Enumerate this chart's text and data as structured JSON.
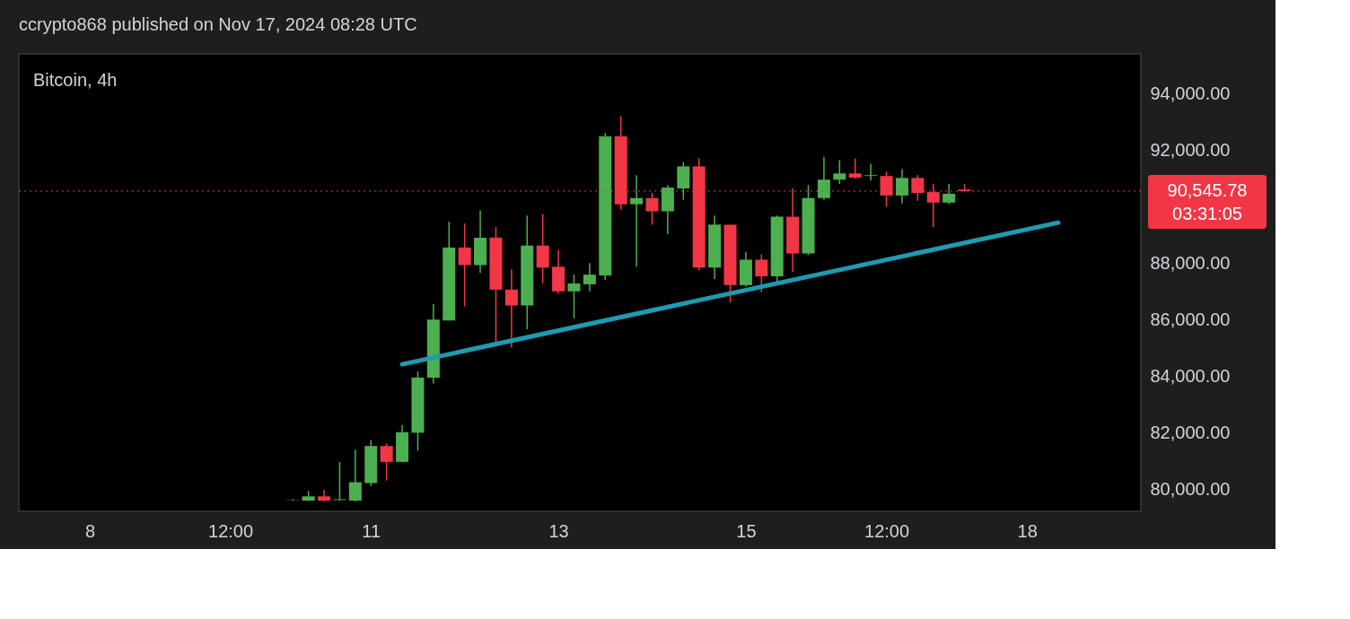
{
  "chart_data": {
    "type": "candlestick",
    "title": "ccrypto868 published on Nov 17, 2024 08:28 UTC",
    "subtitle": "Bitcoin, 4h",
    "x": [
      "2024-11-10T04:00",
      "2024-11-10T08:00",
      "2024-11-10T12:00",
      "2024-11-10T16:00",
      "2024-11-10T20:00",
      "2024-11-11T00:00",
      "2024-11-11T04:00",
      "2024-11-11T08:00",
      "2024-11-11T12:00",
      "2024-11-11T16:00",
      "2024-11-11T20:00",
      "2024-11-12T00:00",
      "2024-11-12T04:00",
      "2024-11-12T08:00",
      "2024-11-12T12:00",
      "2024-11-12T16:00",
      "2024-11-12T20:00",
      "2024-11-13T00:00",
      "2024-11-13T04:00",
      "2024-11-13T08:00",
      "2024-11-13T12:00",
      "2024-11-13T16:00",
      "2024-11-13T20:00",
      "2024-11-14T00:00",
      "2024-11-14T04:00",
      "2024-11-14T08:00",
      "2024-11-14T12:00",
      "2024-11-14T16:00",
      "2024-11-14T20:00",
      "2024-11-15T00:00",
      "2024-11-15T04:00",
      "2024-11-15T08:00",
      "2024-11-15T12:00",
      "2024-11-15T16:00",
      "2024-11-15T20:00",
      "2024-11-16T00:00",
      "2024-11-16T04:00",
      "2024-11-16T08:00",
      "2024-11-16T12:00",
      "2024-11-16T16:00",
      "2024-11-16T20:00",
      "2024-11-17T00:00",
      "2024-11-17T04:00",
      "2024-11-17T08:00"
    ],
    "ohlc": [
      [
        79620,
        79650,
        79600,
        79630
      ],
      [
        79600,
        79940,
        79590,
        79750
      ],
      [
        79750,
        79970,
        79580,
        79600
      ],
      [
        79620,
        80970,
        79590,
        79650
      ],
      [
        79600,
        81400,
        79570,
        80250
      ],
      [
        80220,
        81740,
        80120,
        81530
      ],
      [
        81530,
        81620,
        80310,
        80970
      ],
      [
        80970,
        82270,
        80950,
        82020
      ],
      [
        82000,
        84170,
        81370,
        83950
      ],
      [
        83950,
        86560,
        83730,
        86000
      ],
      [
        85970,
        89460,
        85970,
        88550
      ],
      [
        88550,
        89400,
        86470,
        87930
      ],
      [
        87930,
        89860,
        87650,
        88900
      ],
      [
        88900,
        89270,
        85200,
        87060
      ],
      [
        87060,
        87780,
        85010,
        86500
      ],
      [
        86500,
        89680,
        85660,
        88620
      ],
      [
        88620,
        89740,
        87280,
        87840
      ],
      [
        87870,
        88460,
        86910,
        87000
      ],
      [
        87000,
        87590,
        86040,
        87280
      ],
      [
        87250,
        88000,
        87000,
        87590
      ],
      [
        87560,
        92600,
        87400,
        92480
      ],
      [
        92480,
        93190,
        89890,
        90080
      ],
      [
        90080,
        91110,
        87870,
        90300
      ],
      [
        90300,
        90480,
        89360,
        89830
      ],
      [
        89830,
        90760,
        89020,
        90670
      ],
      [
        90640,
        91570,
        90240,
        91420
      ],
      [
        91420,
        91700,
        87750,
        87840
      ],
      [
        87840,
        89680,
        87440,
        89360
      ],
      [
        89360,
        89360,
        86600,
        87220
      ],
      [
        87220,
        88400,
        87160,
        88120
      ],
      [
        88120,
        88310,
        86970,
        87530
      ],
      [
        87530,
        89680,
        87310,
        89640
      ],
      [
        89640,
        90640,
        87680,
        88340
      ],
      [
        88340,
        90760,
        88280,
        90300
      ],
      [
        90300,
        91760,
        90240,
        90950
      ],
      [
        90950,
        91640,
        90800,
        91170
      ],
      [
        91170,
        91700,
        90980,
        91020
      ],
      [
        91080,
        91510,
        90920,
        91110
      ],
      [
        91080,
        91230,
        89990,
        90390
      ],
      [
        90390,
        91320,
        90110,
        91010
      ],
      [
        91010,
        91110,
        90200,
        90480
      ],
      [
        90510,
        90800,
        89270,
        90140
      ],
      [
        90140,
        90800,
        90080,
        90450
      ],
      [
        90600,
        90800,
        90520,
        90545.78
      ]
    ],
    "colors": [
      "#4caf50",
      "#4caf50",
      "#f23645",
      "#4caf50",
      "#4caf50",
      "#4caf50",
      "#f23645",
      "#4caf50",
      "#4caf50",
      "#4caf50",
      "#4caf50",
      "#f23645",
      "#4caf50",
      "#f23645",
      "#f23645",
      "#4caf50",
      "#f23645",
      "#f23645",
      "#4caf50",
      "#4caf50",
      "#4caf50",
      "#f23645",
      "#4caf50",
      "#f23645",
      "#4caf50",
      "#4caf50",
      "#f23645",
      "#4caf50",
      "#f23645",
      "#4caf50",
      "#f23645",
      "#4caf50",
      "#f23645",
      "#4caf50",
      "#4caf50",
      "#4caf50",
      "#f23645",
      "#4caf50",
      "#f23645",
      "#4caf50",
      "#f23645",
      "#f23645",
      "#4caf50",
      "#f23645"
    ],
    "series": [
      {
        "type": "line",
        "x": [
          "2024-11-11T08:00",
          "2024-11-18T08:00"
        ],
        "values": [
          84420,
          89430
        ],
        "color": "#1e9bb0"
      }
    ],
    "ref_lines": [
      {
        "axis": "y",
        "value": 90545.78,
        "label": "90,545.78",
        "color": "#f23645",
        "line_style": "dotted"
      }
    ],
    "annotations": [
      "03:31:05"
    ],
    "xlim": [
      "2024-11-07T07:00",
      "2024-11-19T04:00"
    ],
    "xticks": [
      {
        "value": "2024-11-08",
        "label": "8"
      },
      {
        "value": "2024-11-09T12:00",
        "label": "12:00"
      },
      {
        "value": "2024-11-11",
        "label": "11"
      },
      {
        "value": "2024-11-13",
        "label": "13"
      },
      {
        "value": "2024-11-15",
        "label": "15"
      },
      {
        "value": "2024-11-16T12:00",
        "label": "12:00"
      },
      {
        "value": "2024-11-18",
        "label": "18"
      }
    ],
    "ylim": [
      79220,
      95400
    ],
    "yticks": [
      {
        "value": 80000,
        "label": "80,000.00"
      },
      {
        "value": 82000,
        "label": "82,000.00"
      },
      {
        "value": 84000,
        "label": "84,000.00"
      },
      {
        "value": 86000,
        "label": "86,000.00"
      },
      {
        "value": 88000,
        "label": "88,000.00"
      },
      {
        "value": 92000,
        "label": "92,000.00"
      },
      {
        "value": 94000,
        "label": "94,000.00"
      }
    ],
    "grid": false
  }
}
